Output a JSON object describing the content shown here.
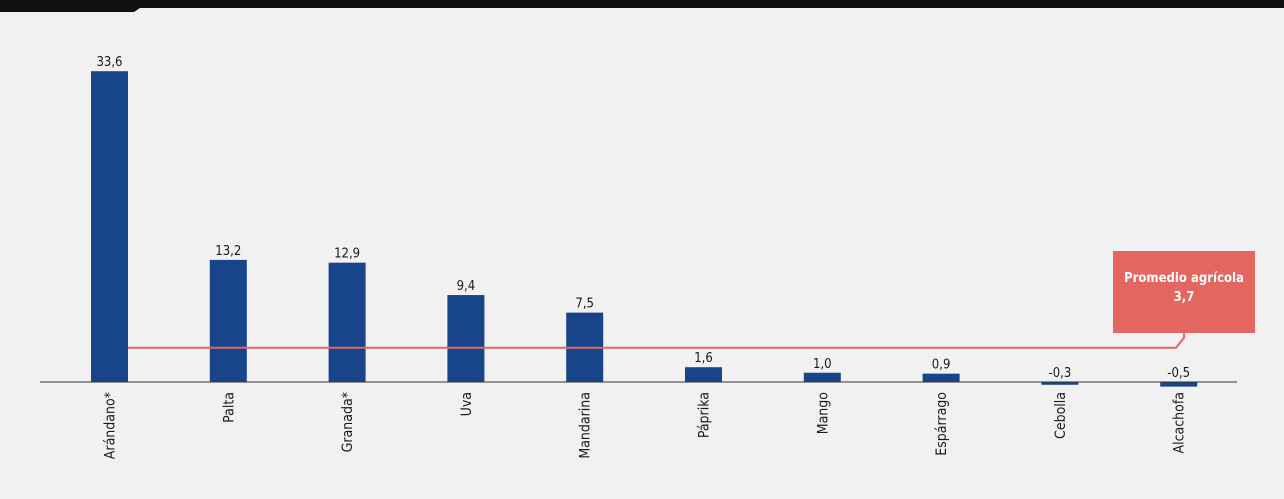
{
  "colors": {
    "bar": "#18458a",
    "average_line": "#e36660",
    "callout_bg": "#e36660",
    "header_bar": "#111111",
    "background": "#f1f1f1"
  },
  "chart_data": {
    "type": "bar",
    "categories": [
      "Arándano*",
      "Palta",
      "Granada*",
      "Uva",
      "Mandarina",
      "Páprika",
      "Mango",
      "Espárrago",
      "Cebolla",
      "Alcachofa"
    ],
    "values": [
      33.6,
      13.2,
      12.9,
      9.4,
      7.5,
      1.6,
      1.0,
      0.9,
      -0.3,
      -0.5
    ],
    "value_labels": [
      "33,6",
      "13,2",
      "12,9",
      "9,4",
      "7,5",
      "1,6",
      "1,0",
      "0,9",
      "-0,3",
      "-0,5"
    ],
    "ylim": [
      -0.5,
      33.6
    ],
    "title": "",
    "xlabel": "",
    "ylabel": "",
    "grid": false,
    "reference_line": {
      "value": 3.7,
      "label": "Promedio agrícola",
      "value_label": "3,7"
    }
  }
}
